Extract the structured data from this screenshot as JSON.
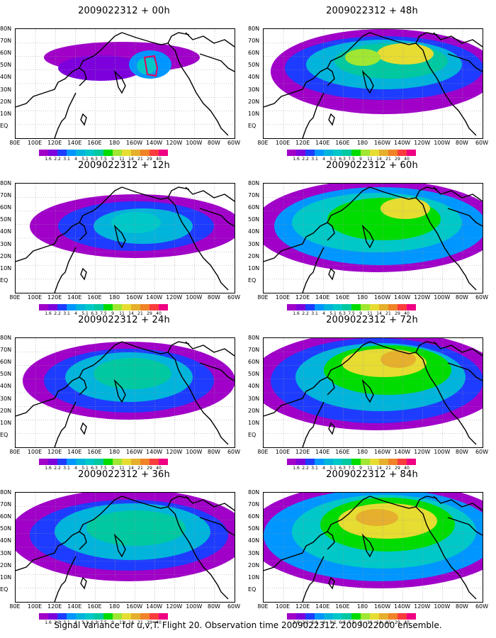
{
  "panels": [
    {
      "title": "2009022312 + 00h"
    },
    {
      "title": "2009022312 + 48h"
    },
    {
      "title": "2009022312 + 12h"
    },
    {
      "title": "2009022312 + 60h"
    },
    {
      "title": "2009022312 + 24h"
    },
    {
      "title": "2009022312 + 72h"
    },
    {
      "title": "2009022312 + 36h"
    },
    {
      "title": "2009022312 + 84h"
    }
  ],
  "lat_labels": [
    "80N",
    "70N",
    "60N",
    "50N",
    "40N",
    "30N",
    "20N",
    "10N",
    "EQ"
  ],
  "lon_labels": [
    "80E",
    "100E",
    "120E",
    "140E",
    "160E",
    "180",
    "160W",
    "140W",
    "120W",
    "100W",
    "80W",
    "60W"
  ],
  "colorbar": {
    "colors": [
      "#a000c8",
      "#7d00dc",
      "#1e3cff",
      "#0096ff",
      "#00b4dc",
      "#00c8c8",
      "#00c8a0",
      "#00dc00",
      "#a0e632",
      "#e6dc32",
      "#e6af2d",
      "#f08228",
      "#fa3c3c",
      "#f00082"
    ],
    "labels": [
      "1.6",
      "2.2",
      "3.1",
      "4",
      "5.1",
      "6.3",
      "7.5",
      "9",
      "11",
      "14",
      "21",
      "29",
      "40"
    ]
  },
  "footer": "Signal Variance for u,v,T. Flight 20. Observation time 2009022312. 2009022000 ensemble."
}
